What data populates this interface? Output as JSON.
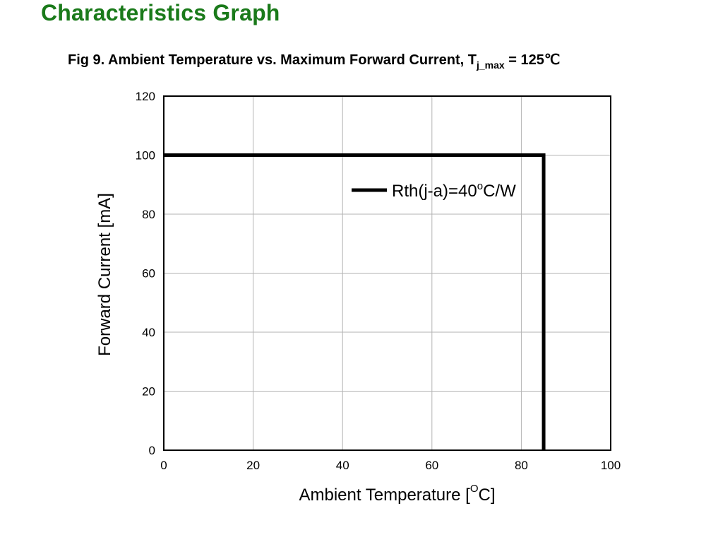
{
  "header": {
    "section_title": "Characteristics Graph"
  },
  "figure": {
    "title_main": "Fig 9. Ambient Temperature vs. Maximum Forward Current,  T",
    "title_sub": "j_max",
    "title_tail": " = 125℃"
  },
  "chart_data": {
    "type": "line",
    "xlabel_main": "Ambient Temperature [",
    "xlabel_sup": "O",
    "xlabel_tail": "C]",
    "ylabel": "Forward Current [mA]",
    "xlim": [
      0,
      100
    ],
    "ylim": [
      0,
      120
    ],
    "x_ticks": [
      "0",
      "20",
      "40",
      "60",
      "80",
      "100"
    ],
    "y_ticks": [
      "0",
      "20",
      "40",
      "60",
      "80",
      "100",
      "120"
    ],
    "grid": true,
    "legend_position": "top-right",
    "series": [
      {
        "name_main": "Rth(j-a)=40",
        "name_sup": "o",
        "name_tail": "C/W",
        "color": "#000000",
        "x": [
          0,
          85,
          85
        ],
        "y": [
          100,
          100,
          0
        ]
      }
    ]
  }
}
